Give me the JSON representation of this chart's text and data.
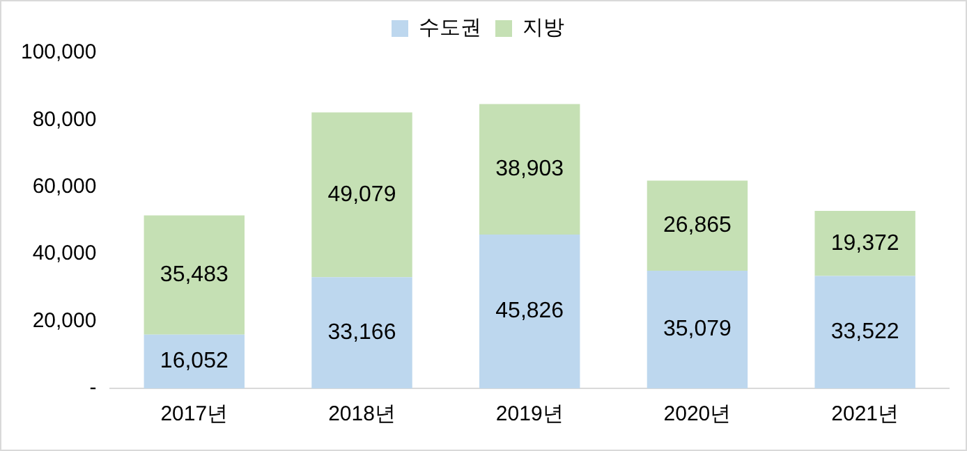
{
  "chart_data": {
    "type": "bar",
    "stacked": true,
    "legend": "top",
    "grid": false,
    "categories": [
      "2017년",
      "2018년",
      "2019년",
      "2020년",
      "2021년"
    ],
    "series": [
      {
        "name": "수도권",
        "color": "#bdd7ee",
        "values": [
          16052,
          33166,
          45826,
          35079,
          33522
        ],
        "value_labels": [
          "16,052",
          "33,166",
          "45,826",
          "35,079",
          "33,522"
        ]
      },
      {
        "name": "지방",
        "color": "#c5e0b4",
        "values": [
          35483,
          49079,
          38903,
          26865,
          19372
        ],
        "value_labels": [
          "35,483",
          "49,079",
          "38,903",
          "26,865",
          "19,372"
        ]
      }
    ],
    "ylim": [
      0,
      100000
    ],
    "yticks": [
      {
        "value": 0,
        "label": "-"
      },
      {
        "value": 20000,
        "label": "20,000"
      },
      {
        "value": 40000,
        "label": "40,000"
      },
      {
        "value": 60000,
        "label": "60,000"
      },
      {
        "value": 80000,
        "label": "80,000"
      },
      {
        "value": 100000,
        "label": "100,000"
      }
    ]
  }
}
